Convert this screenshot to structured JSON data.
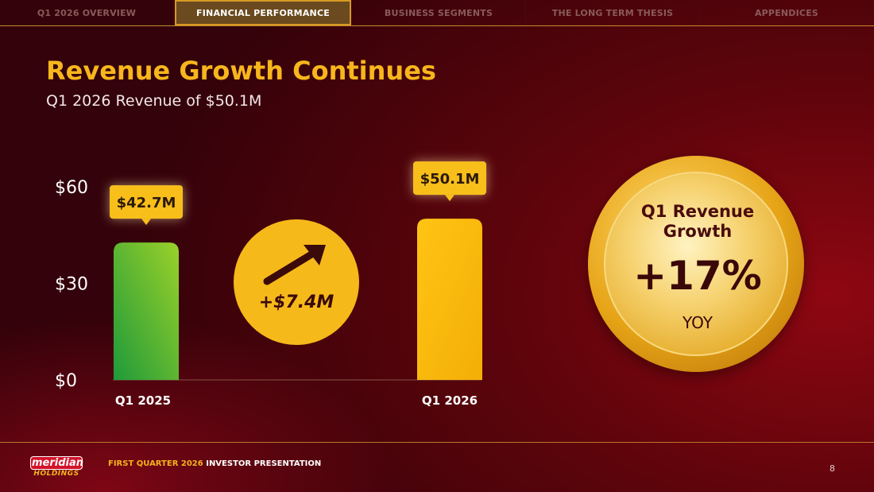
{
  "nav": {
    "tabs": [
      {
        "label": "Q1 2026 OVERVIEW",
        "active": false
      },
      {
        "label": "FINANCIAL PERFORMANCE",
        "active": true
      },
      {
        "label": "BUSINESS SEGMENTS",
        "active": false
      },
      {
        "label": "THE LONG TERM THESIS",
        "active": false
      },
      {
        "label": "APPENDICES",
        "active": false
      }
    ]
  },
  "slide": {
    "title": "Revenue Growth Continues",
    "subtitle": "Q1 2026 Revenue of $50.1M"
  },
  "chart_data": {
    "type": "bar",
    "categories": [
      "Q1 2025",
      "Q1 2026"
    ],
    "values": [
      42.7,
      50.1
    ],
    "data_labels": [
      "$42.7M",
      "$50.1M"
    ],
    "y_ticks": [
      0,
      30,
      60
    ],
    "y_tick_labels": [
      "$0",
      "$30",
      "$60"
    ],
    "ylim": [
      0,
      60
    ],
    "grid": false,
    "bar_colors": [
      "#7cc236",
      "#f9bd0c"
    ]
  },
  "change": {
    "value": "+$7.4M",
    "icon": "arrow-up-right-icon"
  },
  "growth_badge": {
    "label_line1": "Q1 Revenue",
    "label_line2": "Growth",
    "value": "+17%",
    "sub": "YOY"
  },
  "footer": {
    "logo_brand": "meridian",
    "logo_sub": "HOLDINGS",
    "highlight": "FIRST QUARTER 2026",
    "text": "INVESTOR PRESENTATION",
    "page": "8"
  },
  "colors": {
    "accent": "#f7b61c",
    "brand_red": "#d4122a"
  }
}
